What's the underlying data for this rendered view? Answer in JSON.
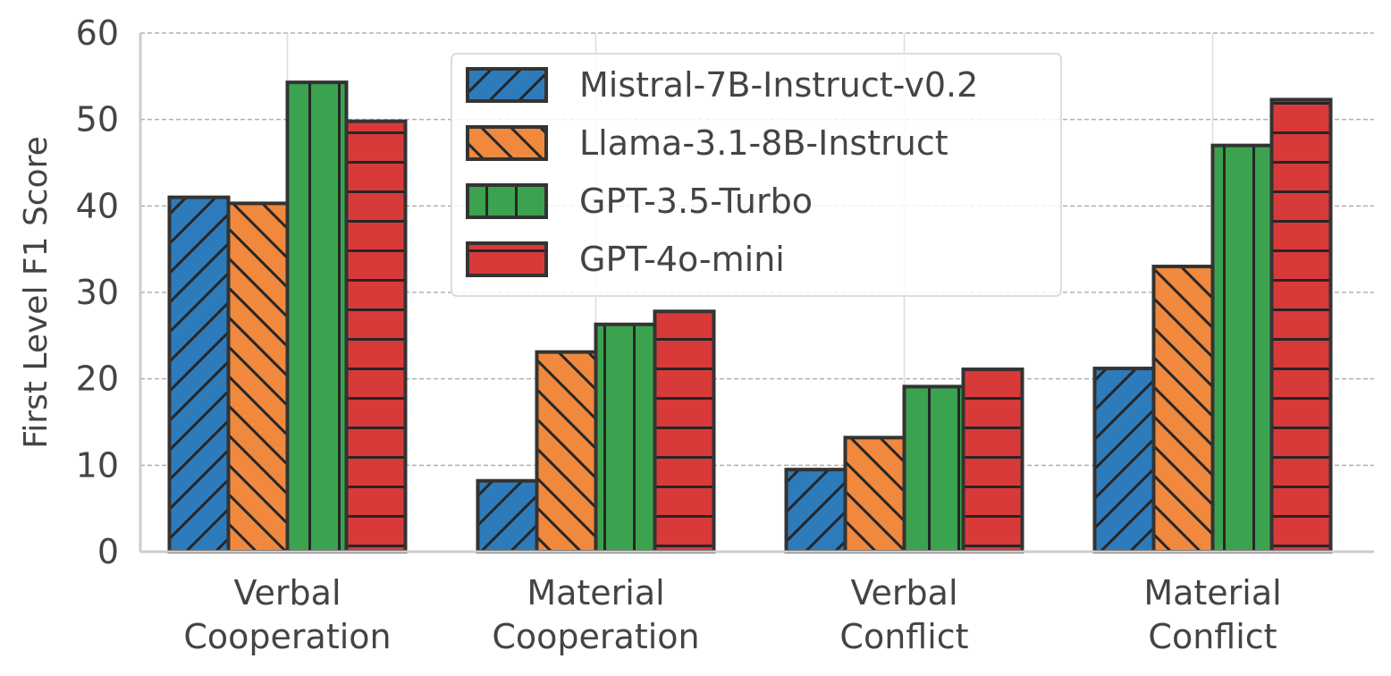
{
  "chart_data": {
    "type": "bar",
    "categories": [
      [
        "Verbal",
        "Cooperation"
      ],
      [
        "Material",
        "Cooperation"
      ],
      [
        "Verbal",
        "Conflict"
      ],
      [
        "Material",
        "Conflict"
      ]
    ],
    "series": [
      {
        "name": "Mistral-7B-Instruct-v0.2",
        "values": [
          41.0,
          8.2,
          9.5,
          21.2
        ],
        "color": "#2e7bbb",
        "hatch": "/"
      },
      {
        "name": "Llama-3.1-8B-Instruct",
        "values": [
          40.3,
          23.1,
          13.2,
          33.0
        ],
        "color": "#f0883e",
        "hatch": "\\"
      },
      {
        "name": "GPT-3.5-Turbo",
        "values": [
          54.3,
          26.3,
          19.1,
          47.0
        ],
        "color": "#3ba34f",
        "hatch": "|"
      },
      {
        "name": "GPT-4o-mini",
        "values": [
          49.8,
          27.8,
          21.1,
          52.3
        ],
        "color": "#d83a3a",
        "hatch": "-"
      }
    ],
    "ylabel": "First Level F1 Score",
    "xlabel": "",
    "ylim": [
      0,
      60
    ],
    "yticks": [
      0,
      10,
      20,
      30,
      40,
      50,
      60
    ],
    "grid": true,
    "legend_position": "top-center"
  }
}
